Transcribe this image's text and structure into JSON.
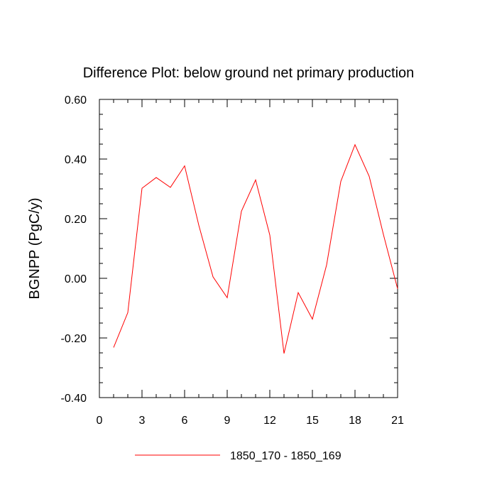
{
  "chart_data": {
    "type": "line",
    "title": "Difference Plot: below ground net primary production",
    "xlabel": "",
    "ylabel": "BGNPP  (PgC/y)",
    "xlim": [
      0,
      21
    ],
    "ylim": [
      -0.4,
      0.6
    ],
    "x_ticks": [
      0,
      3,
      6,
      9,
      12,
      15,
      18,
      21
    ],
    "x_tick_labels": [
      "0",
      "3",
      "6",
      "9",
      "12",
      "15",
      "18",
      "21"
    ],
    "x_minor_step": 1,
    "y_ticks": [
      -0.4,
      -0.2,
      0.0,
      0.2,
      0.4,
      0.6
    ],
    "y_tick_labels": [
      "-0.40",
      "-0.20",
      "0.00",
      "0.20",
      "0.40",
      "0.60"
    ],
    "y_minor_step": 0.05,
    "grid": false,
    "legend_position": "bottom",
    "series": [
      {
        "name": "1850_170 - 1850_169",
        "color": "#ff0000",
        "x": [
          1,
          2,
          3,
          4,
          5,
          6,
          7,
          8,
          9,
          10,
          11,
          12,
          13,
          14,
          15,
          16,
          17,
          18,
          19,
          20,
          21
        ],
        "values": [
          -0.232,
          -0.115,
          0.302,
          0.338,
          0.305,
          0.377,
          0.178,
          0.005,
          -0.065,
          0.225,
          0.33,
          0.145,
          -0.252,
          -0.048,
          -0.137,
          0.045,
          0.325,
          0.448,
          0.342,
          0.147,
          -0.035
        ]
      }
    ]
  }
}
